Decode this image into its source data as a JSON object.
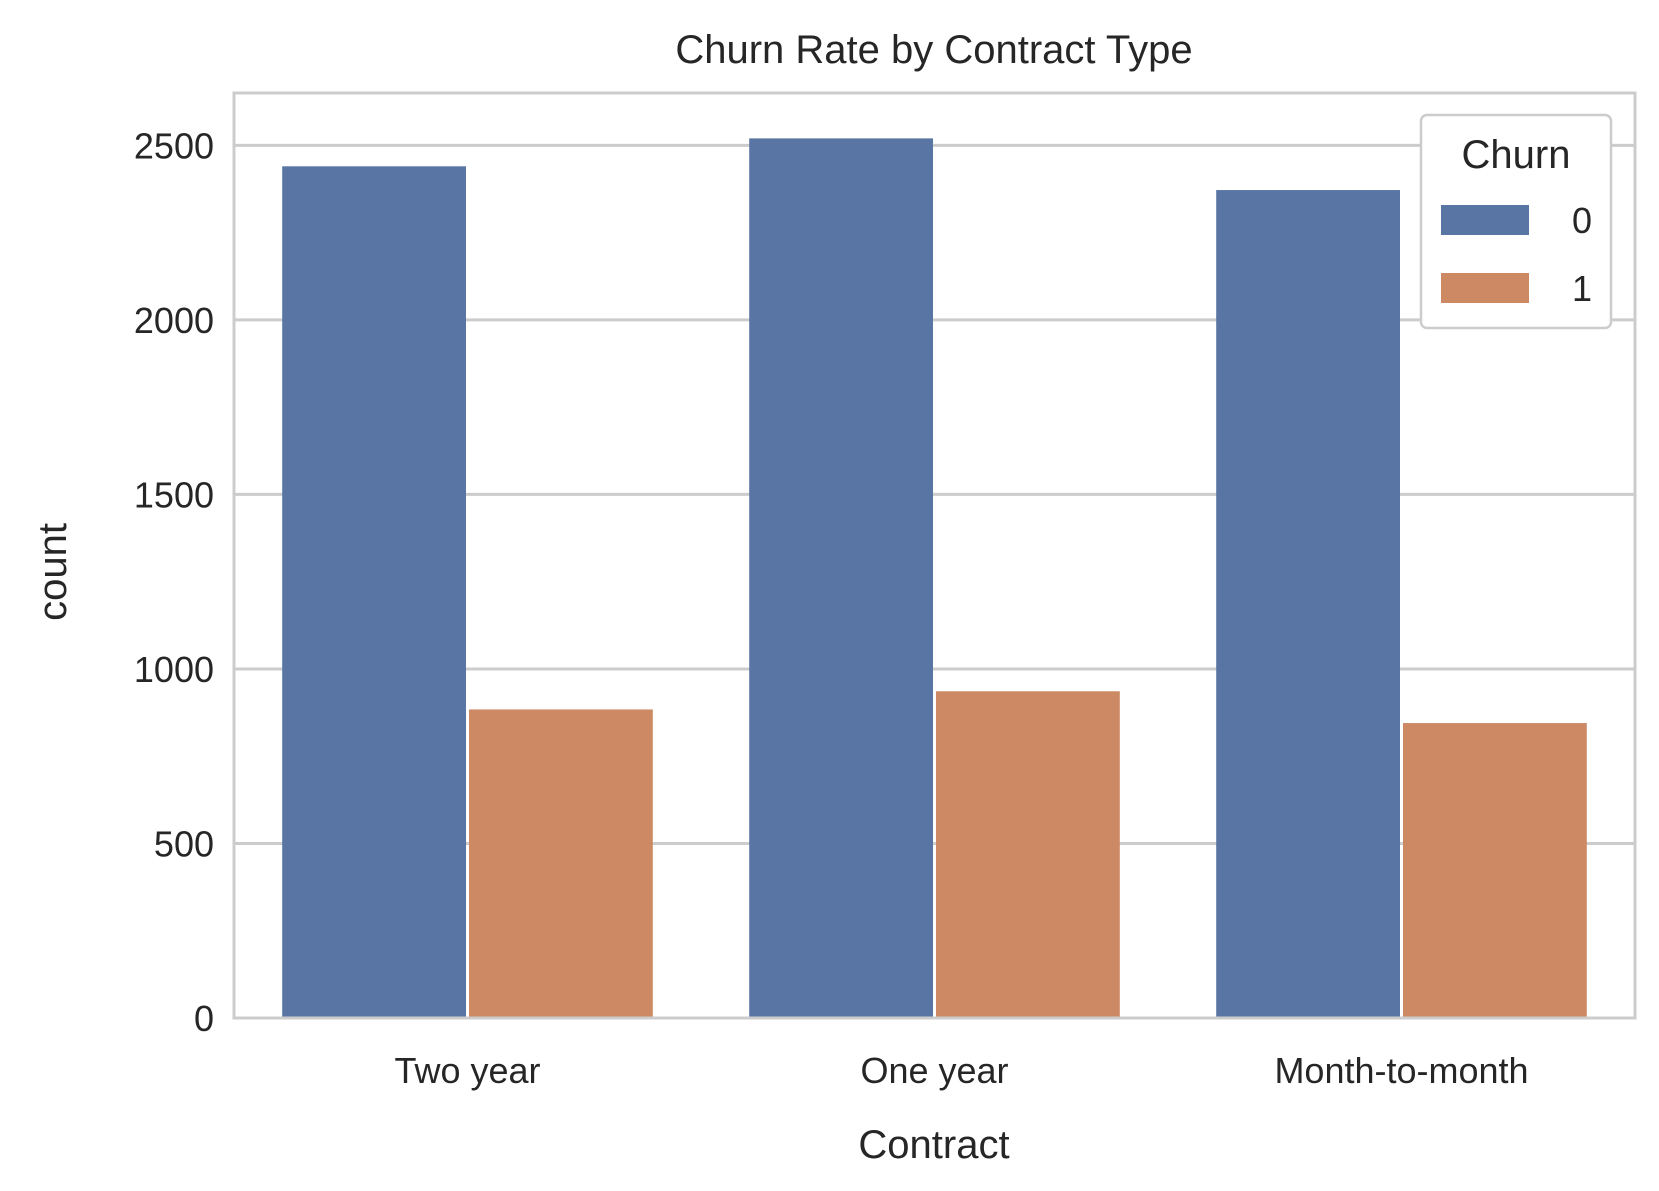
{
  "chart_data": {
    "type": "bar",
    "title": "Churn Rate by Contract Type",
    "xlabel": "Contract",
    "ylabel": "count",
    "categories": [
      "Two year",
      "One year",
      "Month-to-month"
    ],
    "series": [
      {
        "name": "0",
        "values": [
          2440,
          2520,
          2372
        ],
        "color": "#5975a4"
      },
      {
        "name": "1",
        "values": [
          884,
          936,
          845
        ],
        "color": "#cc8963"
      }
    ],
    "ylim": [
      0,
      2650
    ],
    "yticks": [
      0,
      500,
      1000,
      1500,
      2000,
      2500
    ],
    "ytick_labels": [
      "0",
      "500",
      "1000",
      "1500",
      "2000",
      "2500"
    ],
    "grid": true,
    "legend": {
      "title": "Churn",
      "placement": "top-right"
    },
    "colors": {
      "grid": "#cccccc",
      "spine": "#cccccc",
      "text": "#262626"
    }
  }
}
